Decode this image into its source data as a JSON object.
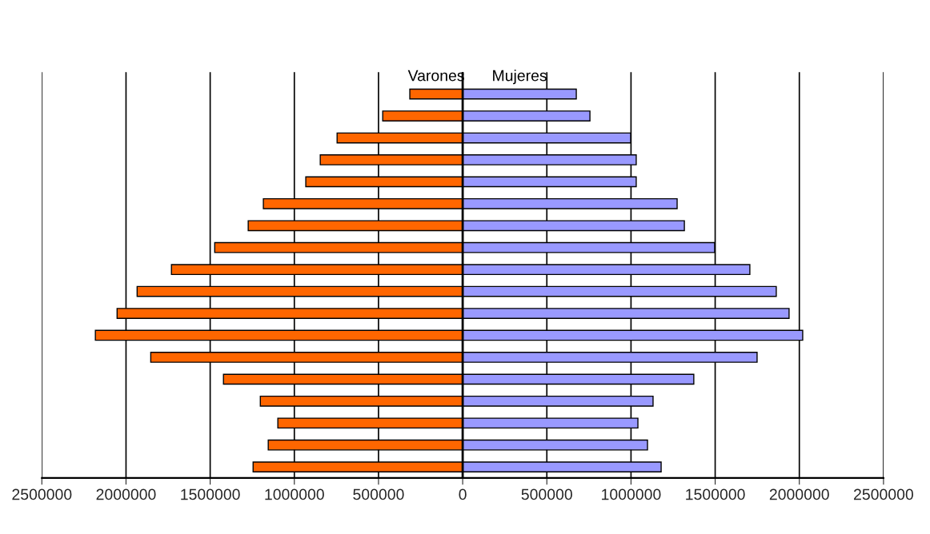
{
  "chart_data": {
    "type": "bar",
    "orientation": "horizontal",
    "stacked": true,
    "categories": [
      null,
      null,
      null,
      null,
      null,
      null,
      null,
      null,
      null,
      null,
      null,
      null,
      null,
      null,
      null,
      null,
      null,
      null
    ],
    "series": [
      {
        "name": "Varones",
        "color": "#ff6600",
        "values": [
          -314000,
          -475000,
          -746000,
          -846000,
          -932000,
          -1184000,
          -1274000,
          -1473000,
          -1730000,
          -1934000,
          -2053000,
          -2182000,
          -1853000,
          -1421000,
          -1202000,
          -1098000,
          -1155000,
          -1245000
        ]
      },
      {
        "name": "Mujeres",
        "color": "#9999ff",
        "values": [
          675000,
          756000,
          998000,
          1031000,
          1031000,
          1274000,
          1317000,
          1497000,
          1706000,
          1863000,
          1939000,
          2020000,
          1749000,
          1373000,
          1131000,
          1041000,
          1098000,
          1179000
        ]
      }
    ],
    "xlim": [
      -2500000,
      2500000
    ],
    "xticks": [
      {
        "value": -2500000,
        "label": "2500000"
      },
      {
        "value": -2000000,
        "label": "2000000"
      },
      {
        "value": -1500000,
        "label": "1500000"
      },
      {
        "value": -1000000,
        "label": "1000000"
      },
      {
        "value": -500000,
        "label": "500000"
      },
      0,
      500000,
      1000000,
      1500000,
      2000000,
      2500000
    ],
    "grid": "x",
    "legend": false,
    "tick_labels": "x"
  }
}
